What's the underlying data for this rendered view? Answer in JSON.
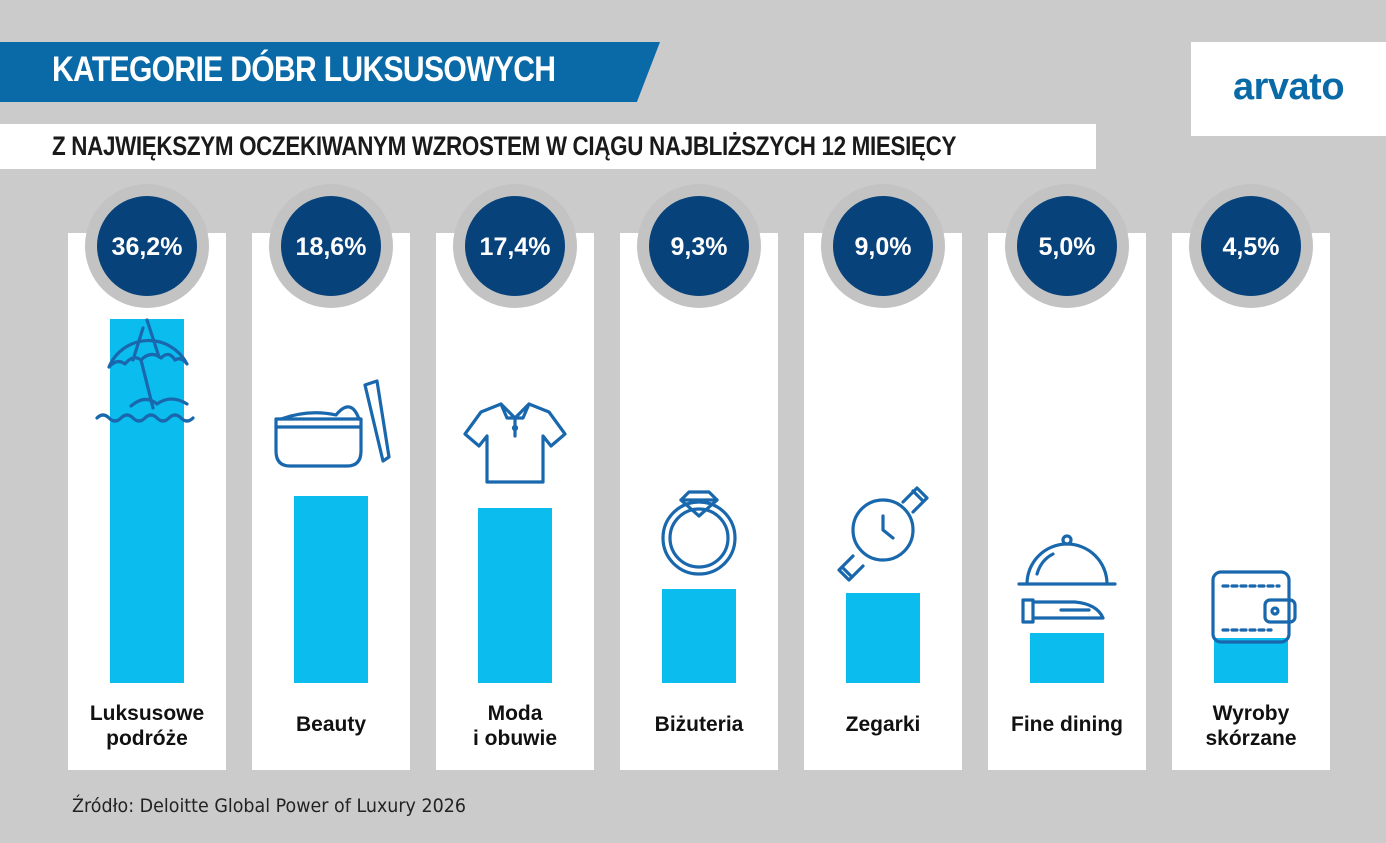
{
  "title": "KATEGORIE DÓBR LUKSUSOWYCH",
  "subtitle": "Z NAJWIĘKSZYM OCZEKIWANYM WZROSTEM W CIĄGU NAJBLIŻSZYCH 12 MIESIĘCY",
  "logo": "arvato",
  "source": "Źródło: Deloitte Global Power of Luxury 2026",
  "colors": {
    "title_band": "#0a6aa8",
    "bubble": "#08427a",
    "bubble_ring": "#c3c3c3",
    "bar": "#0bbcef",
    "icon": "#1968ad",
    "card": "#ffffff",
    "background": "#cbcbcb"
  },
  "chart_data": {
    "type": "bar",
    "categories": [
      [
        "Luksusowe",
        "podróże"
      ],
      [
        "Beauty"
      ],
      [
        "Moda",
        "i obuwie"
      ],
      [
        "Biżuteria"
      ],
      [
        "Zegarki"
      ],
      [
        "Fine dining"
      ],
      [
        "Wyroby",
        "skórzane"
      ]
    ],
    "values": [
      36.2,
      18.6,
      17.4,
      9.3,
      9.0,
      5.0,
      4.5
    ],
    "value_labels": [
      "36,2%",
      "18,6%",
      "17,4%",
      "9,3%",
      "9,0%",
      "5,0%",
      "4,5%"
    ],
    "icons": [
      "beach-umbrella-icon",
      "cream-jar-icon",
      "polo-shirt-icon",
      "diamond-ring-icon",
      "wristwatch-icon",
      "cloche-serving-icon",
      "wallet-icon"
    ],
    "unit": "%",
    "ylim": [
      0,
      36.2
    ]
  }
}
